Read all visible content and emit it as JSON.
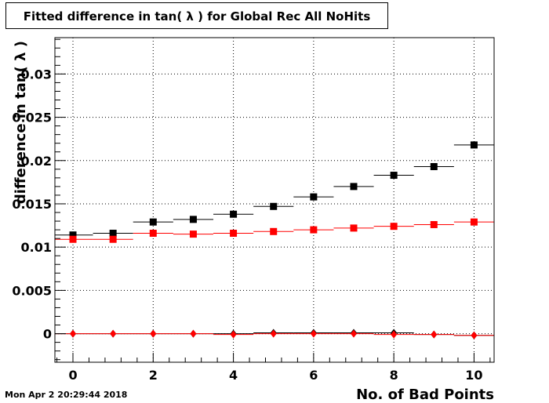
{
  "title": "Fitted difference in tan( λ ) for Global Rec All NoHits",
  "timestamp": "Mon Apr  2 20:29:44 2018",
  "chart_data": {
    "type": "scatter",
    "title": "Fitted difference in tan( λ ) for Global Rec All NoHits",
    "xlabel": "No. of Bad Points",
    "ylabel": "difference in tan( λ )",
    "xlim": [
      -0.45,
      10.5
    ],
    "ylim": [
      -0.0033,
      0.0342
    ],
    "grid": true,
    "x_ticks": [
      0,
      2,
      4,
      6,
      8,
      10
    ],
    "x_tick_labels": [
      "0",
      "2",
      "4",
      "6",
      "8",
      "10"
    ],
    "y_ticks": [
      0,
      0.005,
      0.01,
      0.015,
      0.02,
      0.025,
      0.03
    ],
    "y_tick_labels": [
      "0",
      "0.005",
      "0.01",
      "0.015",
      "0.02",
      "0.025",
      "0.03"
    ],
    "series": [
      {
        "color": "#000000",
        "marker": "square",
        "x": [
          0,
          1,
          2,
          3,
          4,
          5,
          6,
          7,
          8,
          9,
          10
        ],
        "y": [
          0.0114,
          0.0116,
          0.0129,
          0.0132,
          0.0138,
          0.0147,
          0.0158,
          0.017,
          0.0183,
          0.0193,
          0.0218
        ]
      },
      {
        "color": "#ff0000",
        "marker": "square",
        "x": [
          0,
          1,
          2,
          3,
          4,
          5,
          6,
          7,
          8,
          9,
          10
        ],
        "y": [
          0.0109,
          0.0109,
          0.0116,
          0.0115,
          0.0116,
          0.0118,
          0.012,
          0.0122,
          0.0124,
          0.0126,
          0.0129
        ]
      },
      {
        "color": "#000000",
        "marker": "diamond",
        "x": [
          0,
          1,
          2,
          3,
          4,
          5,
          6,
          7,
          8,
          9,
          10
        ],
        "y": [
          0.0,
          0.0,
          0.0,
          0.0,
          0.0,
          0.0001,
          0.0001,
          0.0001,
          0.0001,
          -0.0001,
          -0.0002
        ]
      },
      {
        "color": "#ff0000",
        "marker": "diamond",
        "x": [
          0,
          1,
          2,
          3,
          4,
          5,
          6,
          7,
          8,
          9,
          10
        ],
        "y": [
          0.0,
          0.0,
          0.0,
          0.0,
          -0.0001,
          0.0,
          0.0,
          0.0,
          -0.0001,
          -0.0001,
          -0.0002
        ]
      }
    ]
  }
}
